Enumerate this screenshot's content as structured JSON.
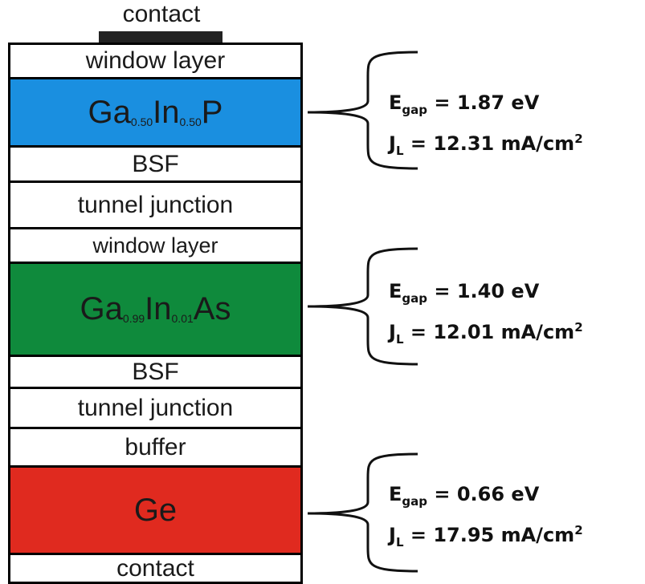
{
  "contact_top_label": "contact",
  "layers": [
    {
      "id": "window-layer-top",
      "kind": "text",
      "label": "window layer",
      "fill": "#ffffff"
    },
    {
      "id": "gainp-cell",
      "kind": "formula",
      "parts": [
        {
          "t": "Ga"
        },
        {
          "s": "0.50"
        },
        {
          "t": "In"
        },
        {
          "s": "0.50"
        },
        {
          "t": "P"
        }
      ],
      "fill": "#1a8fe0"
    },
    {
      "id": "bsf-top",
      "kind": "text",
      "label": "BSF",
      "fill": "#ffffff"
    },
    {
      "id": "tunnel-junction-top",
      "kind": "text",
      "label": "tunnel junction",
      "fill": "#ffffff"
    },
    {
      "id": "window-layer-middle",
      "kind": "text",
      "label": "window layer",
      "fill": "#ffffff"
    },
    {
      "id": "gainas-cell",
      "kind": "formula",
      "parts": [
        {
          "t": "Ga"
        },
        {
          "s": "0.99"
        },
        {
          "t": "In"
        },
        {
          "s": "0.01"
        },
        {
          "t": "As"
        }
      ],
      "fill": "#0f8a3c"
    },
    {
      "id": "bsf-middle",
      "kind": "text",
      "label": "BSF",
      "fill": "#ffffff"
    },
    {
      "id": "tunnel-junction-bottom",
      "kind": "text",
      "label": "tunnel junction",
      "fill": "#ffffff"
    },
    {
      "id": "buffer-layer",
      "kind": "text",
      "label": "buffer",
      "fill": "#ffffff"
    },
    {
      "id": "ge-cell",
      "kind": "formula",
      "parts": [
        {
          "t": "Ge"
        }
      ],
      "fill": "#e02a1f"
    },
    {
      "id": "contact-bottom",
      "kind": "text",
      "label": "contact",
      "fill": "#ffffff"
    }
  ],
  "annotations": [
    {
      "id": "top",
      "egap": "1.87 eV",
      "jl": "12.31 mA/cm",
      "jl_exp": "2"
    },
    {
      "id": "middle",
      "egap": "1.40 eV",
      "jl": "12.01 mA/cm",
      "jl_exp": "2"
    },
    {
      "id": "bottom",
      "egap": "0.66 eV",
      "jl": "17.95 mA/cm",
      "jl_exp": "2"
    }
  ],
  "symbols": {
    "e": "E",
    "e_sub": "gap",
    "j": "J",
    "j_sub": "L",
    "eq": " = "
  }
}
